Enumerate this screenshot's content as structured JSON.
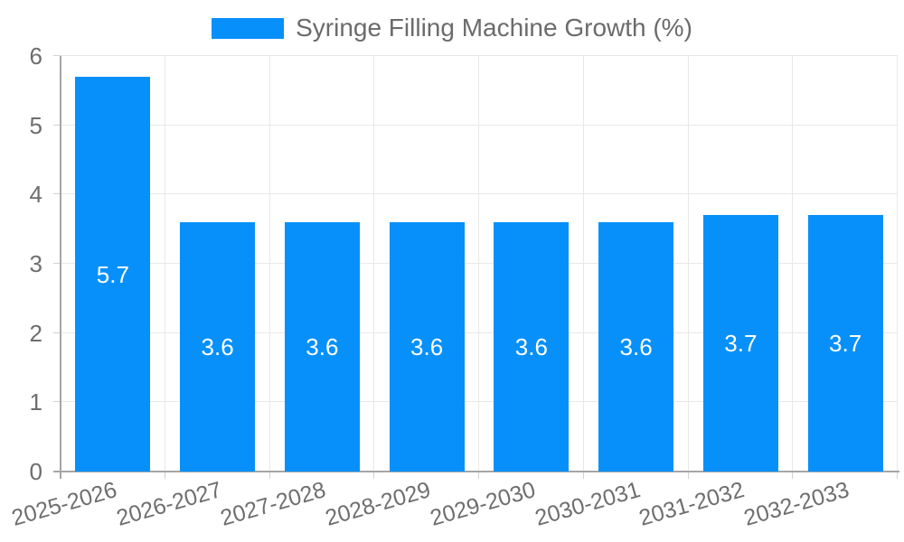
{
  "chart_data": {
    "type": "bar",
    "legend": [
      {
        "label": "Syringe Filling Machine Growth (%)",
        "color": "#0790fa"
      }
    ],
    "legend_position": "top",
    "categories": [
      "2025-2026",
      "2026-2027",
      "2027-2028",
      "2028-2029",
      "2029-2030",
      "2030-2031",
      "2031-2032",
      "2032-2033"
    ],
    "values": [
      5.7,
      3.6,
      3.6,
      3.6,
      3.6,
      3.6,
      3.7,
      3.7
    ],
    "bar_labels": [
      "5.7",
      "3.6",
      "3.6",
      "3.6",
      "3.6",
      "3.6",
      "3.7",
      "3.7"
    ],
    "ytick_labels": [
      "0",
      "1",
      "2",
      "3",
      "4",
      "5",
      "6"
    ],
    "ylim": [
      0,
      6
    ],
    "grid": true,
    "x_label_rotation_deg": -16,
    "colors": {
      "bar": "#0790fa",
      "value_label": "#ffffff",
      "axis_text": "#6e6e6e",
      "grid": "#e8e8e8",
      "axis_line": "#a6a6a6",
      "tick_mark": "#d2d2d2",
      "background": "#ffffff"
    }
  }
}
